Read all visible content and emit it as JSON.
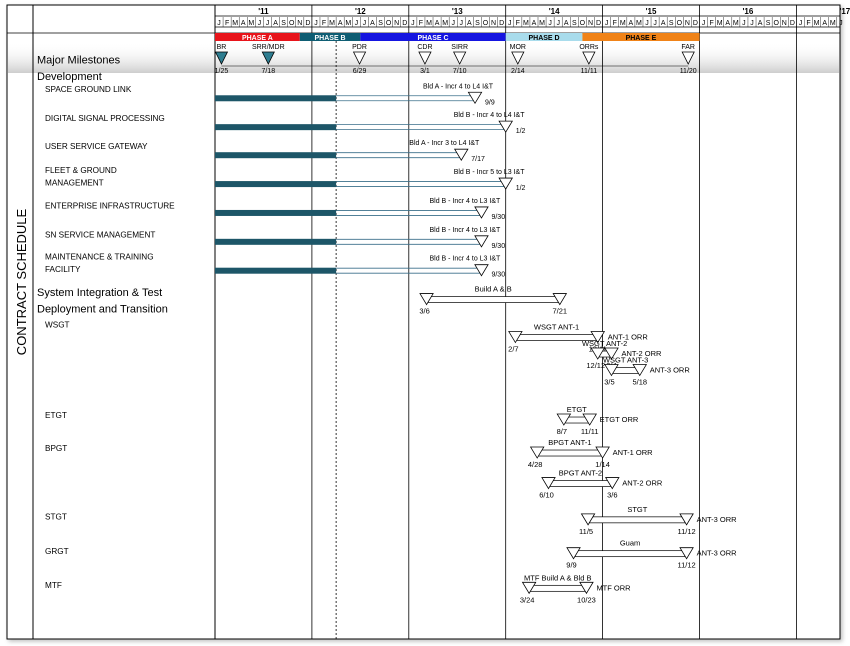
{
  "chart_data": {
    "type": "gantt",
    "side_label": "CONTRACT SCHEDULE",
    "years": [
      "'11",
      "'12",
      "'13",
      "'14",
      "'15",
      "'16",
      "'17"
    ],
    "month_letters": [
      "J",
      "F",
      "M",
      "A",
      "M",
      "J",
      "J",
      "A",
      "S",
      "O",
      "N",
      "D"
    ],
    "phases": [
      {
        "name": "PHASE A",
        "color": "#e8141b",
        "start": 0,
        "end": 10.5
      },
      {
        "name": "PHASE B",
        "color": "#0e5d73",
        "start": 10.5,
        "end": 18.0
      },
      {
        "name": "PHASE C",
        "color": "#1515e0",
        "start": 18.0,
        "end": 36.0
      },
      {
        "name": "PHASE D",
        "color": "#a9dcec",
        "start": 36.0,
        "end": 45.5
      },
      {
        "name": "PHASE E",
        "color": "#f08318",
        "start": 45.5,
        "end": 60.0
      }
    ],
    "rows": [
      {
        "label": "Major Milestones",
        "level": 0,
        "m": 1.0
      },
      {
        "label": "Development",
        "level": 0,
        "m": 2.0
      },
      {
        "label": "SPACE GROUND LINK",
        "level": 1,
        "m": 2.8
      },
      {
        "label": "DIGITAL SIGNAL PROCESSING",
        "level": 1,
        "m": 4.55
      },
      {
        "label": "USER SERVICE GATEWAY",
        "level": 1,
        "m": 6.25
      },
      {
        "label": "FLEET & GROUND",
        "level": 1,
        "m": 7.7
      },
      {
        "label": "MANAGEMENT",
        "level": 1,
        "m": 8.45
      },
      {
        "label": "ENTERPRISE INFRASTRUCTURE",
        "level": 1,
        "m": 9.85
      },
      {
        "label": "SN SERVICE MANAGEMENT",
        "level": 1,
        "m": 11.6
      },
      {
        "label": "MAINTENANCE & TRAINING",
        "level": 1,
        "m": 12.95
      },
      {
        "label": "FACILITY",
        "level": 1,
        "m": 13.7
      },
      {
        "label": "System Integration & Test",
        "level": 0,
        "m": 15.1
      },
      {
        "label": "Deployment and Transition",
        "level": 0,
        "m": 16.1
      },
      {
        "label": "WSGT",
        "level": 1,
        "m": 17.05
      },
      {
        "label": "ETGT",
        "level": 1,
        "m": 22.55
      },
      {
        "label": "BPGT",
        "level": 1,
        "m": 24.55
      },
      {
        "label": "STGT",
        "level": 1,
        "m": 28.7
      },
      {
        "label": "GRGT",
        "level": 1,
        "m": 30.8
      },
      {
        "label": "MTF",
        "level": 1,
        "m": 32.85
      }
    ],
    "milestones": [
      {
        "label": "BR",
        "date": "1/25",
        "t": 0.8,
        "filled": true
      },
      {
        "label": "SRR/MDR",
        "date": "7/18",
        "t": 6.6,
        "filled": true
      },
      {
        "label": "PDR",
        "date": "6/29",
        "t": 17.9,
        "filled": false
      },
      {
        "label": "CDR",
        "date": "3/1",
        "t": 26.0,
        "filled": false
      },
      {
        "label": "SIRR",
        "date": "7/10",
        "t": 30.3,
        "filled": false
      },
      {
        "label": "MOR",
        "date": "2/14",
        "t": 37.5,
        "filled": false
      },
      {
        "label": "ORRs",
        "date": "11/11",
        "t": 46.3,
        "filled": false
      },
      {
        "label": "FAR",
        "date": "11/20",
        "t": 58.6,
        "filled": false
      }
    ],
    "dev_tasks": [
      {
        "m": 3.35,
        "start": 0,
        "mid": 15.0,
        "end": 32.2,
        "title": "Bld A - Incr 4 to L4 I&T",
        "date": "9/9"
      },
      {
        "m": 5.1,
        "start": 0,
        "mid": 15.0,
        "end": 36.0,
        "title": "Bld B - Incr 4 to L4 I&T",
        "date": "1/2"
      },
      {
        "m": 6.8,
        "start": 0,
        "mid": 15.0,
        "end": 30.5,
        "title": "Bld A - Incr 3 to L4 I&T",
        "date": "7/17"
      },
      {
        "m": 8.55,
        "start": 0,
        "mid": 15.0,
        "end": 36.0,
        "title": "Bld B - Incr 5 to L3 I&T",
        "date": "1/2"
      },
      {
        "m": 10.3,
        "start": 0,
        "mid": 15.0,
        "end": 33.0,
        "title": "Bld B - Incr 4 to L3 I&T",
        "date": "9/30"
      },
      {
        "m": 12.05,
        "start": 0,
        "mid": 15.0,
        "end": 33.0,
        "title": "Bld B - Incr 4 to L3 I&T",
        "date": "9/30"
      },
      {
        "m": 13.8,
        "start": 0,
        "mid": 15.0,
        "end": 33.0,
        "title": "Bld B - Incr 4 to L3 I&T",
        "date": "9/30"
      }
    ],
    "spans": [
      {
        "m": 15.55,
        "start": 26.2,
        "end": 42.7,
        "title": "Build A & B",
        "date_start": "3/6",
        "date_end": "7/21"
      },
      {
        "m": 17.85,
        "start": 37.2,
        "end": 47.4,
        "title": "WSGT ANT-1",
        "date_start": "2/7",
        "date_end": "12/11",
        "after": "ANT-1 ORR"
      },
      {
        "m": 18.85,
        "start": 47.4,
        "end": 49.1,
        "title": "WSGT ANT-2",
        "date_start": "12/12",
        "date_end": "3/4",
        "after": "ANT-2 ORR"
      },
      {
        "m": 19.85,
        "start": 49.1,
        "end": 52.6,
        "title": "WSGT ANT-3",
        "date_start": "3/5",
        "date_end": "5/18",
        "after": "ANT-3 ORR"
      },
      {
        "m": 22.85,
        "start": 43.2,
        "end": 46.4,
        "title": "ETGT",
        "date_start": "8/7",
        "date_end": "11/11",
        "after": "ETGT ORR"
      },
      {
        "m": 24.85,
        "start": 39.9,
        "end": 48.0,
        "title": "BPGT ANT-1",
        "date_start": "4/28",
        "date_end": "1/14",
        "after": "ANT-1 ORR"
      },
      {
        "m": 26.7,
        "start": 41.3,
        "end": 49.2,
        "title": "BPGT ANT-2",
        "date_start": "6/10",
        "date_end": "3/6",
        "after": "ANT-2 ORR"
      },
      {
        "m": 28.9,
        "start": 46.2,
        "end": 58.4,
        "title": "STGT",
        "date_start": "11/5",
        "date_end": "11/12",
        "after": "ANT-3 ORR"
      },
      {
        "m": 30.95,
        "start": 44.4,
        "end": 58.4,
        "title": "Guam",
        "date_start": "9/9",
        "date_end": "11/12",
        "after": "ANT-3 ORR"
      },
      {
        "m": 33.05,
        "start": 38.9,
        "end": 46.0,
        "title": "MTF Build A & Bld B",
        "date_start": "3/24",
        "date_end": "10/23",
        "after": "MTF ORR"
      }
    ]
  }
}
